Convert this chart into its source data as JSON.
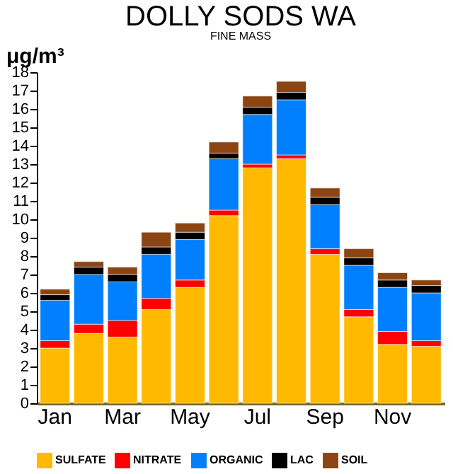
{
  "chart_data": {
    "type": "bar",
    "title": "DOLLY SODS WA",
    "subtitle": "FINE MASS",
    "ylabel": "μg/m³",
    "stacked": true,
    "categories": [
      "Jan",
      null,
      "Mar",
      null,
      "May",
      null,
      "Jul",
      null,
      "Sep",
      null,
      "Nov",
      null
    ],
    "series": [
      {
        "name": "SULFATE",
        "color": "#ffb900",
        "values": [
          3.0,
          3.8,
          3.6,
          5.1,
          6.3,
          10.2,
          12.8,
          13.3,
          8.1,
          4.7,
          3.2,
          3.1
        ]
      },
      {
        "name": "NITRATE",
        "color": "#ff0000",
        "values": [
          0.4,
          0.5,
          0.9,
          0.6,
          0.4,
          0.3,
          0.2,
          0.2,
          0.3,
          0.4,
          0.7,
          0.3
        ]
      },
      {
        "name": "ORGANIC",
        "color": "#0080ff",
        "values": [
          2.2,
          2.7,
          2.1,
          2.4,
          2.2,
          2.8,
          2.7,
          3.0,
          2.4,
          2.4,
          2.4,
          2.6
        ]
      },
      {
        "name": "LAC",
        "color": "#000000",
        "values": [
          0.3,
          0.4,
          0.4,
          0.4,
          0.4,
          0.3,
          0.4,
          0.4,
          0.4,
          0.4,
          0.4,
          0.4
        ]
      },
      {
        "name": "SOIL",
        "color": "#8b4513",
        "values": [
          0.3,
          0.3,
          0.4,
          0.8,
          0.5,
          0.6,
          0.6,
          0.6,
          0.5,
          0.5,
          0.4,
          0.3
        ]
      }
    ],
    "ylim": [
      0,
      18
    ],
    "yticks": [
      0,
      1,
      2,
      3,
      4,
      5,
      6,
      7,
      8,
      9,
      10,
      11,
      12,
      13,
      14,
      15,
      16,
      17,
      18
    ],
    "grid": false,
    "legend": "bottom"
  }
}
